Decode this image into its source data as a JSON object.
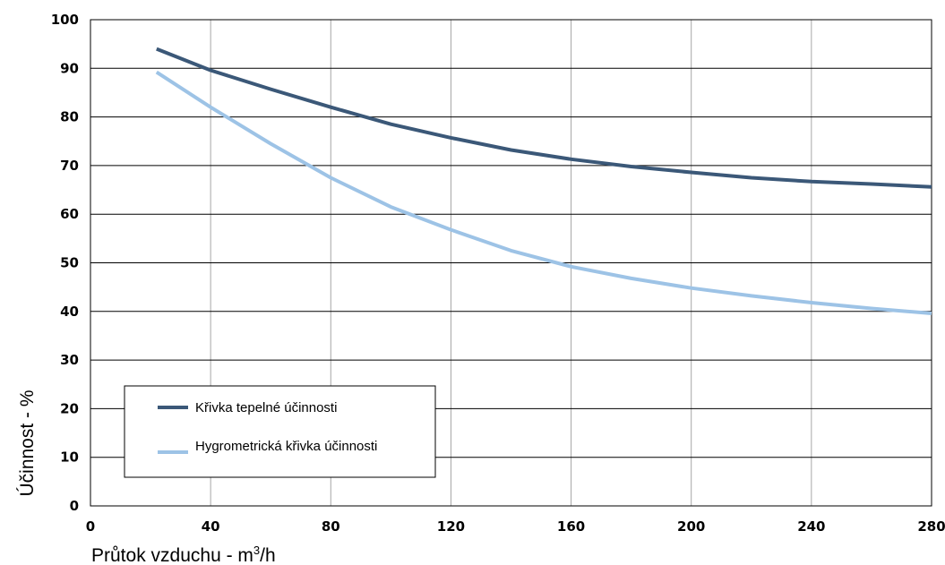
{
  "chart_data": {
    "type": "line",
    "x_range": [
      0,
      280
    ],
    "y_range": [
      0,
      100
    ],
    "x_ticks": [
      0,
      40,
      80,
      120,
      160,
      200,
      240,
      280
    ],
    "y_ticks": [
      0,
      10,
      20,
      30,
      40,
      50,
      60,
      70,
      80,
      90,
      100
    ],
    "xlabel_main": "Průtok vzduchu - m",
    "xlabel_sup": "3",
    "xlabel_tail": "/h",
    "ylabel": "Účinnost - %",
    "grid": true,
    "legend_placement": "lower-left",
    "series": [
      {
        "name": "Křivka tepelné účinnosti",
        "color": "#3b5878",
        "x": [
          22,
          40,
          60,
          80,
          100,
          120,
          140,
          160,
          180,
          200,
          220,
          240,
          260,
          280
        ],
        "y": [
          94,
          89.6,
          85.7,
          82,
          78.5,
          75.7,
          73.2,
          71.3,
          69.8,
          68.6,
          67.5,
          66.7,
          66.2,
          65.6
        ]
      },
      {
        "name": "Hygrometrická křivka účinnosti",
        "color": "#9dc3e6",
        "x": [
          22,
          40,
          60,
          80,
          100,
          120,
          140,
          160,
          180,
          200,
          220,
          240,
          260,
          280
        ],
        "y": [
          89.2,
          82,
          74.5,
          67.5,
          61.5,
          56.8,
          52.5,
          49.2,
          46.8,
          44.8,
          43.2,
          41.8,
          40.6,
          39.6
        ]
      }
    ]
  }
}
